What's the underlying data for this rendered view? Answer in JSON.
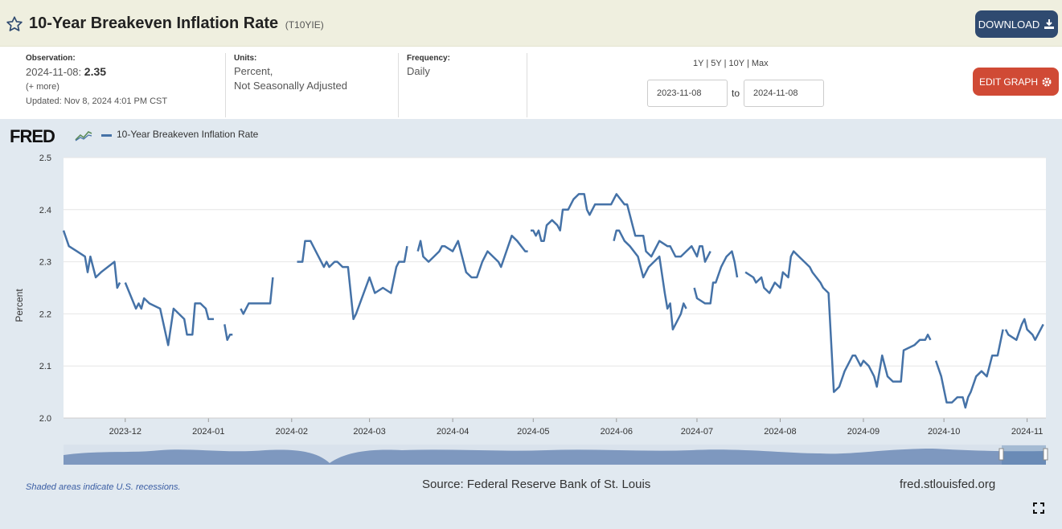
{
  "header": {
    "title": "10-Year Breakeven Inflation Rate",
    "series_id": "(T10YIE)",
    "download_label": "DOWNLOAD"
  },
  "meta": {
    "observation_heading": "Observation:",
    "observation_date": "2024-11-08:",
    "observation_value": "2.35",
    "more_label": "(+ more)",
    "updated": "Updated: Nov 8, 2024 4:01 PM CST",
    "units_heading": "Units:",
    "units_line1": "Percent,",
    "units_line2": "Not Seasonally Adjusted",
    "frequency_heading": "Frequency:",
    "frequency": "Daily"
  },
  "controls": {
    "range_1y": "1Y",
    "range_5y": "5Y",
    "range_10y": "10Y",
    "range_max": "Max",
    "range_sep": "|",
    "start_date": "2023-11-08",
    "to_label": "to",
    "end_date": "2024-11-08",
    "edit_label": "EDIT GRAPH"
  },
  "chart_header": {
    "logo": "FRED",
    "legend_label": "10-Year Breakeven Inflation Rate"
  },
  "footer": {
    "recession_note": "Shaded areas indicate U.S. recessions.",
    "source": "Source: Federal Reserve Bank of St. Louis",
    "site": "fred.stlouisfed.org"
  },
  "colors": {
    "line": "#4572a7",
    "download_button": "#2f4a70",
    "edit_button": "#d04a35",
    "panel_bg": "#e1e9f0"
  },
  "chart_data": {
    "type": "line",
    "title": "",
    "xlabel": "",
    "ylabel": "Percent",
    "ylim": [
      2.0,
      2.5
    ],
    "yticks": [
      2.0,
      2.1,
      2.2,
      2.3,
      2.4,
      2.5
    ],
    "xlim": [
      "2023-11-08",
      "2024-11-08"
    ],
    "xticks": [
      "2023-12",
      "2024-01",
      "2024-02",
      "2024-03",
      "2024-04",
      "2024-05",
      "2024-06",
      "2024-07",
      "2024-08",
      "2024-09",
      "2024-10",
      "2024-11"
    ],
    "grid": true,
    "series": [
      {
        "name": "10-Year Breakeven Inflation Rate",
        "segments": [
          [
            [
              "2023-11-08",
              2.36
            ],
            [
              "2023-11-10",
              2.33
            ],
            [
              "2023-11-13",
              2.32
            ],
            [
              "2023-11-16",
              2.31
            ],
            [
              "2023-11-17",
              2.28
            ],
            [
              "2023-11-18",
              2.31
            ],
            [
              "2023-11-20",
              2.27
            ],
            [
              "2023-11-22",
              2.28
            ],
            [
              "2023-11-27",
              2.3
            ],
            [
              "2023-11-28",
              2.25
            ],
            [
              "2023-11-29",
              2.26
            ]
          ],
          [
            [
              "2023-12-01",
              2.26
            ],
            [
              "2023-12-05",
              2.21
            ],
            [
              "2023-12-06",
              2.22
            ],
            [
              "2023-12-07",
              2.21
            ],
            [
              "2023-12-08",
              2.23
            ],
            [
              "2023-12-10",
              2.22
            ],
            [
              "2023-12-14",
              2.21
            ],
            [
              "2023-12-17",
              2.14
            ],
            [
              "2023-12-19",
              2.21
            ],
            [
              "2023-12-23",
              2.19
            ],
            [
              "2023-12-24",
              2.16
            ],
            [
              "2023-12-26",
              2.16
            ],
            [
              "2023-12-27",
              2.22
            ],
            [
              "2023-12-29",
              2.22
            ],
            [
              "2023-12-31",
              2.21
            ],
            [
              "2024-01-01",
              2.19
            ],
            [
              "2024-01-03",
              2.19
            ]
          ],
          [
            [
              "2024-01-07",
              2.18
            ],
            [
              "2024-01-08",
              2.15
            ],
            [
              "2024-01-09",
              2.16
            ],
            [
              "2024-01-10",
              2.16
            ]
          ],
          [
            [
              "2024-01-13",
              2.21
            ],
            [
              "2024-01-14",
              2.2
            ],
            [
              "2024-01-16",
              2.22
            ],
            [
              "2024-01-24",
              2.22
            ],
            [
              "2024-01-25",
              2.27
            ]
          ],
          [
            [
              "2024-02-03",
              2.3
            ],
            [
              "2024-02-05",
              2.3
            ],
            [
              "2024-02-06",
              2.34
            ],
            [
              "2024-02-08",
              2.34
            ],
            [
              "2024-02-10",
              2.32
            ],
            [
              "2024-02-13",
              2.29
            ],
            [
              "2024-02-14",
              2.3
            ],
            [
              "2024-02-15",
              2.29
            ],
            [
              "2024-02-17",
              2.3
            ],
            [
              "2024-02-18",
              2.3
            ],
            [
              "2024-02-20",
              2.29
            ],
            [
              "2024-02-22",
              2.29
            ],
            [
              "2024-02-24",
              2.19
            ],
            [
              "2024-02-25",
              2.2
            ],
            [
              "2024-03-01",
              2.27
            ],
            [
              "2024-03-03",
              2.24
            ],
            [
              "2024-03-06",
              2.25
            ],
            [
              "2024-03-09",
              2.24
            ],
            [
              "2024-03-11",
              2.29
            ],
            [
              "2024-03-12",
              2.3
            ],
            [
              "2024-03-14",
              2.3
            ],
            [
              "2024-03-15",
              2.33
            ]
          ],
          [
            [
              "2024-03-19",
              2.32
            ],
            [
              "2024-03-20",
              2.34
            ],
            [
              "2024-03-21",
              2.31
            ],
            [
              "2024-03-23",
              2.3
            ],
            [
              "2024-03-25",
              2.31
            ],
            [
              "2024-03-27",
              2.32
            ],
            [
              "2024-03-28",
              2.33
            ],
            [
              "2024-03-29",
              2.33
            ],
            [
              "2024-04-01",
              2.32
            ],
            [
              "2024-04-03",
              2.34
            ],
            [
              "2024-04-06",
              2.28
            ],
            [
              "2024-04-08",
              2.27
            ],
            [
              "2024-04-10",
              2.27
            ],
            [
              "2024-04-12",
              2.3
            ],
            [
              "2024-04-14",
              2.32
            ],
            [
              "2024-04-16",
              2.31
            ],
            [
              "2024-04-18",
              2.3
            ],
            [
              "2024-04-19",
              2.29
            ],
            [
              "2024-04-21",
              2.32
            ],
            [
              "2024-04-23",
              2.35
            ],
            [
              "2024-04-25",
              2.34
            ],
            [
              "2024-04-28",
              2.32
            ],
            [
              "2024-04-29",
              2.32
            ]
          ],
          [
            [
              "2024-04-30",
              2.36
            ],
            [
              "2024-05-01",
              2.36
            ],
            [
              "2024-05-02",
              2.35
            ],
            [
              "2024-05-03",
              2.36
            ],
            [
              "2024-05-04",
              2.34
            ],
            [
              "2024-05-05",
              2.34
            ],
            [
              "2024-05-06",
              2.37
            ],
            [
              "2024-05-08",
              2.38
            ],
            [
              "2024-05-10",
              2.37
            ],
            [
              "2024-05-11",
              2.36
            ],
            [
              "2024-05-12",
              2.4
            ],
            [
              "2024-05-14",
              2.4
            ],
            [
              "2024-05-16",
              2.42
            ],
            [
              "2024-05-18",
              2.43
            ],
            [
              "2024-05-20",
              2.43
            ],
            [
              "2024-05-21",
              2.4
            ],
            [
              "2024-05-22",
              2.39
            ],
            [
              "2024-05-24",
              2.41
            ],
            [
              "2024-05-30",
              2.41
            ],
            [
              "2024-06-01",
              2.43
            ],
            [
              "2024-06-04",
              2.41
            ],
            [
              "2024-06-05",
              2.41
            ],
            [
              "2024-06-07",
              2.37
            ],
            [
              "2024-06-08",
              2.35
            ],
            [
              "2024-06-11",
              2.35
            ],
            [
              "2024-06-12",
              2.32
            ],
            [
              "2024-06-14",
              2.31
            ],
            [
              "2024-06-15",
              2.32
            ],
            [
              "2024-06-17",
              2.34
            ],
            [
              "2024-06-20",
              2.33
            ],
            [
              "2024-06-21",
              2.33
            ],
            [
              "2024-06-23",
              2.31
            ],
            [
              "2024-06-25",
              2.31
            ],
            [
              "2024-06-27",
              2.32
            ],
            [
              "2024-06-29",
              2.33
            ],
            [
              "2024-06-30",
              2.32
            ],
            [
              "2024-07-01",
              2.31
            ],
            [
              "2024-07-02",
              2.33
            ],
            [
              "2024-07-03",
              2.33
            ],
            [
              "2024-07-04",
              2.3
            ],
            [
              "2024-07-06",
              2.32
            ]
          ]
        ],
        "segments_b": [
          [
            [
              "2024-05-31",
              2.34
            ],
            [
              "2024-06-01",
              2.36
            ],
            [
              "2024-06-02",
              2.36
            ],
            [
              "2024-06-04",
              2.34
            ],
            [
              "2024-06-06",
              2.33
            ],
            [
              "2024-06-09",
              2.31
            ],
            [
              "2024-06-10",
              2.29
            ],
            [
              "2024-06-11",
              2.27
            ],
            [
              "2024-06-13",
              2.29
            ],
            [
              "2024-06-15",
              2.3
            ],
            [
              "2024-06-17",
              2.31
            ],
            [
              "2024-06-19",
              2.24
            ],
            [
              "2024-06-20",
              2.21
            ],
            [
              "2024-06-21",
              2.22
            ],
            [
              "2024-06-22",
              2.17
            ],
            [
              "2024-06-25",
              2.2
            ],
            [
              "2024-06-26",
              2.22
            ],
            [
              "2024-06-27",
              2.21
            ]
          ],
          [
            [
              "2024-06-30",
              2.25
            ],
            [
              "2024-07-01",
              2.23
            ],
            [
              "2024-07-04",
              2.22
            ],
            [
              "2024-07-06",
              2.22
            ],
            [
              "2024-07-07",
              2.26
            ],
            [
              "2024-07-08",
              2.26
            ],
            [
              "2024-07-10",
              2.29
            ],
            [
              "2024-07-12",
              2.31
            ],
            [
              "2024-07-14",
              2.32
            ],
            [
              "2024-07-15",
              2.3
            ],
            [
              "2024-07-16",
              2.27
            ]
          ],
          [
            [
              "2024-07-19",
              2.28
            ],
            [
              "2024-07-22",
              2.27
            ],
            [
              "2024-07-23",
              2.26
            ],
            [
              "2024-07-25",
              2.27
            ],
            [
              "2024-07-26",
              2.25
            ],
            [
              "2024-07-28",
              2.24
            ],
            [
              "2024-07-30",
              2.26
            ],
            [
              "2024-08-01",
              2.25
            ],
            [
              "2024-08-02",
              2.28
            ],
            [
              "2024-08-04",
              2.27
            ],
            [
              "2024-08-05",
              2.31
            ],
            [
              "2024-08-06",
              2.32
            ],
            [
              "2024-08-08",
              2.31
            ],
            [
              "2024-08-10",
              2.3
            ],
            [
              "2024-08-12",
              2.29
            ],
            [
              "2024-08-13",
              2.28
            ],
            [
              "2024-08-16",
              2.26
            ],
            [
              "2024-08-17",
              2.25
            ],
            [
              "2024-08-19",
              2.24
            ],
            [
              "2024-08-21",
              2.05
            ],
            [
              "2024-08-23",
              2.06
            ],
            [
              "2024-08-25",
              2.09
            ],
            [
              "2024-08-27",
              2.11
            ],
            [
              "2024-08-28",
              2.12
            ],
            [
              "2024-08-29",
              2.12
            ],
            [
              "2024-08-31",
              2.1
            ],
            [
              "2024-09-01",
              2.11
            ],
            [
              "2024-09-03",
              2.1
            ],
            [
              "2024-09-05",
              2.08
            ],
            [
              "2024-09-06",
              2.06
            ],
            [
              "2024-09-08",
              2.12
            ],
            [
              "2024-09-10",
              2.08
            ],
            [
              "2024-09-12",
              2.07
            ],
            [
              "2024-09-15",
              2.07
            ],
            [
              "2024-09-16",
              2.13
            ],
            [
              "2024-09-20",
              2.14
            ],
            [
              "2024-09-22",
              2.15
            ],
            [
              "2024-09-24",
              2.15
            ],
            [
              "2024-09-25",
              2.16
            ],
            [
              "2024-09-26",
              2.15
            ]
          ]
        ]
      }
    ]
  }
}
